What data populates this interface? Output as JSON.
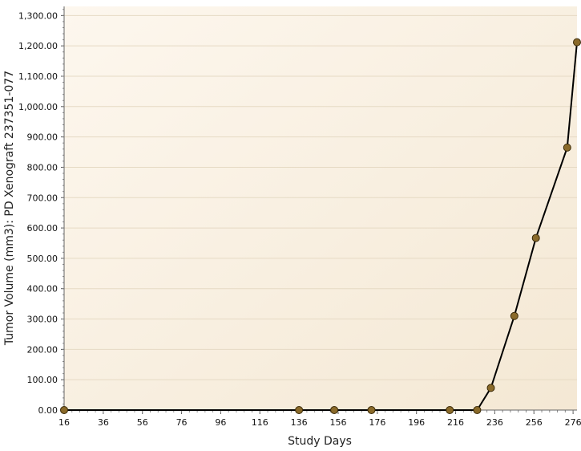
{
  "chart_data": {
    "type": "line",
    "xlabel": "Study Days",
    "ylabel": "Tumor Volume (mm3): PD Xenograft 237351-077",
    "xlim": [
      16,
      278
    ],
    "ylim": [
      0,
      1330
    ],
    "x_ticks": [
      16,
      36,
      56,
      76,
      96,
      116,
      136,
      156,
      176,
      196,
      216,
      236,
      256,
      276
    ],
    "x_tick_labels": [
      "16",
      "36",
      "56",
      "76",
      "96",
      "116",
      "136",
      "156",
      "176",
      "196",
      "216",
      "236",
      "256",
      "276"
    ],
    "y_ticks": [
      0,
      100,
      200,
      300,
      400,
      500,
      600,
      700,
      800,
      900,
      1000,
      1100,
      1200,
      1300
    ],
    "y_tick_labels": [
      "0.00",
      "100.00",
      "200.00",
      "300.00",
      "400.00",
      "500.00",
      "600.00",
      "700.00",
      "800.00",
      "900.00",
      "1,000.00",
      "1,100.00",
      "1,200.00",
      "1,300.00"
    ],
    "grid": true,
    "colors": {
      "line": "#000000",
      "marker_fill": "#8a6a2a",
      "marker_stroke": "#3a2a08",
      "plot_bg_start": "#fdf7ee",
      "plot_bg_end": "#f4e8d4",
      "grid": "#e6dac4"
    },
    "series": [
      {
        "x": [
          16,
          136,
          154,
          173,
          213,
          227,
          234,
          246,
          257,
          273,
          278
        ],
        "y": [
          0,
          0,
          0,
          0,
          0,
          0,
          73,
          310,
          567,
          865,
          1212
        ]
      }
    ]
  }
}
